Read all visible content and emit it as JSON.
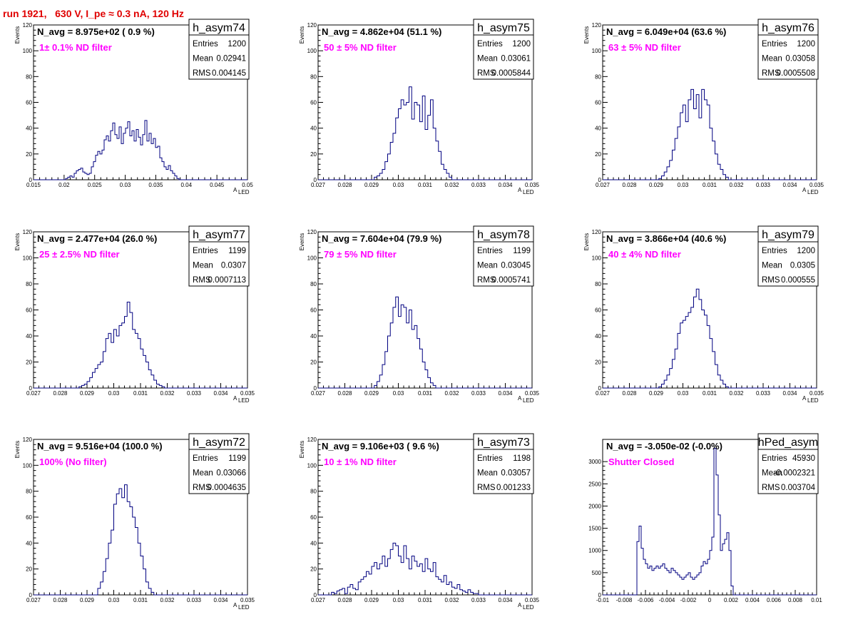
{
  "header": {
    "title": "run 1921,   630 V, I_pe ≈ 0.3 nA, 120 Hz"
  },
  "chart_data": [
    {
      "type": "bar",
      "name": "h_asym74",
      "navg": "N_avg = 8.975e+02 ( 0.9 %)",
      "filter": "1± 0.1% ND filter",
      "stats": {
        "entries": "1200",
        "mean": "0.02941",
        "rms": "0.004145"
      },
      "ylabel": "Events",
      "xlabel": "A",
      "xlabel_sub": "LED",
      "xlim": [
        0.015,
        0.05
      ],
      "ylim": [
        0,
        120
      ],
      "xticks": [
        "0.015",
        "0.02",
        "0.025",
        "0.03",
        "0.035",
        "0.04",
        "0.045",
        "0.05"
      ],
      "yticks": [
        "0",
        "20",
        "40",
        "60",
        "80",
        "100",
        "120"
      ],
      "bin_start": 0.015,
      "bin_width": 0.00035,
      "values": [
        0,
        0,
        0,
        0,
        0,
        0,
        0,
        0,
        0,
        0,
        0,
        0,
        0,
        0,
        0,
        1,
        2,
        3,
        2,
        5,
        7,
        8,
        9,
        6,
        5,
        4,
        5,
        10,
        14,
        19,
        22,
        20,
        23,
        31,
        34,
        30,
        38,
        44,
        35,
        32,
        41,
        28,
        36,
        40,
        45,
        34,
        38,
        30,
        39,
        33,
        27,
        35,
        46,
        30,
        36,
        28,
        32,
        25,
        26,
        17,
        14,
        10,
        8,
        11,
        7,
        5,
        3,
        1,
        0,
        0,
        0,
        0,
        0,
        0,
        0,
        0,
        0,
        0,
        0,
        0,
        0,
        0,
        0,
        0,
        0,
        0,
        0,
        0,
        0,
        0,
        0,
        0,
        0,
        0,
        0,
        0,
        0,
        0,
        0,
        0
      ]
    },
    {
      "type": "bar",
      "name": "h_asym75",
      "navg": "N_avg = 4.862e+04 (51.1 %)",
      "filter": "50 ± 5% ND filter",
      "stats": {
        "entries": "1200",
        "mean": "0.03061",
        "rms": "0.0005844"
      },
      "ylabel": "Events",
      "xlabel": "A",
      "xlabel_sub": "LED",
      "xlim": [
        0.027,
        0.035
      ],
      "ylim": [
        0,
        120
      ],
      "xticks": [
        "0.027",
        "0.028",
        "0.029",
        "0.03",
        "0.031",
        "0.032",
        "0.033",
        "0.034",
        "0.035"
      ],
      "yticks": [
        "0",
        "20",
        "40",
        "60",
        "80",
        "100",
        "120"
      ],
      "bin_start": 0.027,
      "bin_width": 0.0001,
      "values": [
        0,
        0,
        0,
        0,
        0,
        0,
        0,
        0,
        0,
        0,
        0,
        0,
        0,
        0,
        0,
        0,
        0,
        0,
        0,
        0,
        0,
        2,
        3,
        5,
        8,
        14,
        20,
        29,
        36,
        48,
        55,
        62,
        58,
        60,
        72,
        47,
        60,
        58,
        45,
        65,
        39,
        50,
        62,
        40,
        30,
        22,
        12,
        8,
        5,
        2,
        0,
        0,
        0,
        0,
        0,
        0,
        0,
        0,
        0,
        0,
        0,
        0,
        0,
        0,
        0,
        0,
        0,
        0,
        0,
        0,
        0,
        0,
        0,
        0,
        0,
        0,
        0,
        0,
        0,
        0
      ]
    },
    {
      "type": "bar",
      "name": "h_asym76",
      "navg": "N_avg = 6.049e+04 (63.6 %)",
      "filter": "63 ± 5% ND filter",
      "stats": {
        "entries": "1200",
        "mean": "0.03058",
        "rms": "0.0005508"
      },
      "ylabel": "Events",
      "xlabel": "A",
      "xlabel_sub": "LED",
      "xlim": [
        0.027,
        0.035
      ],
      "ylim": [
        0,
        120
      ],
      "xticks": [
        "0.027",
        "0.028",
        "0.029",
        "0.03",
        "0.031",
        "0.032",
        "0.033",
        "0.034",
        "0.035"
      ],
      "yticks": [
        "0",
        "20",
        "40",
        "60",
        "80",
        "100",
        "120"
      ],
      "bin_start": 0.027,
      "bin_width": 0.0001,
      "values": [
        0,
        0,
        0,
        0,
        0,
        0,
        0,
        0,
        0,
        0,
        0,
        0,
        0,
        0,
        0,
        0,
        0,
        0,
        0,
        0,
        0,
        1,
        3,
        6,
        10,
        15,
        23,
        32,
        41,
        52,
        58,
        45,
        62,
        70,
        55,
        66,
        48,
        70,
        62,
        58,
        40,
        30,
        20,
        12,
        8,
        4,
        2,
        0,
        0,
        0,
        0,
        0,
        0,
        0,
        0,
        0,
        0,
        0,
        0,
        0,
        0,
        0,
        0,
        0,
        0,
        0,
        0,
        0,
        0,
        0,
        0,
        0,
        0,
        0,
        0,
        0,
        0,
        0,
        0,
        0
      ]
    },
    {
      "type": "bar",
      "name": "h_asym77",
      "navg": "N_avg = 2.477e+04 (26.0 %)",
      "filter": "25 ± 2.5% ND filter",
      "stats": {
        "entries": "1199",
        "mean": "0.0307",
        "rms": "0.0007113"
      },
      "ylabel": "Events",
      "xlabel": "A",
      "xlabel_sub": "LED",
      "xlim": [
        0.027,
        0.035
      ],
      "ylim": [
        0,
        120
      ],
      "xticks": [
        "0.027",
        "0.028",
        "0.029",
        "0.03",
        "0.031",
        "0.032",
        "0.033",
        "0.034",
        "0.035"
      ],
      "yticks": [
        "0",
        "20",
        "40",
        "60",
        "80",
        "100",
        "120"
      ],
      "bin_start": 0.027,
      "bin_width": 0.0001,
      "values": [
        0,
        0,
        0,
        0,
        0,
        0,
        0,
        0,
        0,
        0,
        0,
        0,
        0,
        0,
        0,
        0,
        0,
        1,
        2,
        3,
        5,
        8,
        12,
        15,
        18,
        20,
        28,
        38,
        42,
        35,
        45,
        40,
        48,
        50,
        55,
        66,
        58,
        45,
        42,
        38,
        30,
        25,
        20,
        14,
        10,
        6,
        3,
        2,
        1,
        0,
        0,
        0,
        0,
        0,
        0,
        0,
        0,
        0,
        0,
        0,
        0,
        0,
        0,
        0,
        0,
        0,
        0,
        0,
        0,
        0,
        0,
        0,
        0,
        0,
        0,
        0,
        0,
        0,
        0,
        0
      ]
    },
    {
      "type": "bar",
      "name": "h_asym78",
      "navg": "N_avg = 7.604e+04 (79.9 %)",
      "filter": "79 ± 5% ND filter",
      "stats": {
        "entries": "1199",
        "mean": "0.03045",
        "rms": "0.0005741"
      },
      "ylabel": "Events",
      "xlabel": "A",
      "xlabel_sub": "LED",
      "xlim": [
        0.027,
        0.035
      ],
      "ylim": [
        0,
        120
      ],
      "xticks": [
        "0.027",
        "0.028",
        "0.029",
        "0.03",
        "0.031",
        "0.032",
        "0.033",
        "0.034",
        "0.035"
      ],
      "yticks": [
        "0",
        "20",
        "40",
        "60",
        "80",
        "100",
        "120"
      ],
      "bin_start": 0.027,
      "bin_width": 0.0001,
      "values": [
        0,
        0,
        0,
        0,
        0,
        0,
        0,
        0,
        0,
        0,
        0,
        0,
        0,
        0,
        0,
        0,
        0,
        0,
        0,
        0,
        0,
        2,
        5,
        10,
        18,
        28,
        40,
        50,
        62,
        70,
        55,
        64,
        62,
        50,
        60,
        45,
        48,
        38,
        30,
        20,
        14,
        8,
        4,
        2,
        0,
        0,
        0,
        0,
        0,
        0,
        0,
        0,
        0,
        0,
        0,
        0,
        0,
        0,
        0,
        0,
        0,
        0,
        0,
        0,
        0,
        0,
        0,
        0,
        0,
        0,
        0,
        0,
        0,
        0,
        0,
        0,
        0,
        0,
        0,
        0
      ]
    },
    {
      "type": "bar",
      "name": "h_asym79",
      "navg": "N_avg = 3.866e+04 (40.6 %)",
      "filter": "40 ± 4% ND filter",
      "stats": {
        "entries": "1200",
        "mean": "0.0305",
        "rms": "0.000555"
      },
      "ylabel": "Events",
      "xlabel": "A",
      "xlabel_sub": "LED",
      "xlim": [
        0.027,
        0.035
      ],
      "ylim": [
        0,
        120
      ],
      "xticks": [
        "0.027",
        "0.028",
        "0.029",
        "0.03",
        "0.031",
        "0.032",
        "0.033",
        "0.034",
        "0.035"
      ],
      "yticks": [
        "0",
        "20",
        "40",
        "60",
        "80",
        "100",
        "120"
      ],
      "bin_start": 0.027,
      "bin_width": 0.0001,
      "values": [
        0,
        0,
        0,
        0,
        0,
        0,
        0,
        0,
        0,
        0,
        0,
        0,
        0,
        0,
        0,
        0,
        0,
        0,
        0,
        0,
        0,
        1,
        3,
        6,
        10,
        15,
        22,
        30,
        42,
        50,
        52,
        55,
        58,
        62,
        70,
        76,
        68,
        60,
        56,
        48,
        38,
        28,
        18,
        10,
        6,
        3,
        1,
        0,
        0,
        0,
        0,
        0,
        0,
        0,
        0,
        0,
        0,
        0,
        0,
        0,
        0,
        0,
        0,
        0,
        0,
        0,
        0,
        0,
        0,
        0,
        0,
        0,
        0,
        0,
        0,
        0,
        0,
        0,
        0,
        0
      ]
    },
    {
      "type": "bar",
      "name": "h_asym72",
      "navg": "N_avg = 9.516e+04 (100.0 %)",
      "filter": "100% (No filter)",
      "stats": {
        "entries": "1199",
        "mean": "0.03066",
        "rms": "0.0004635"
      },
      "ylabel": "Events",
      "xlabel": "A",
      "xlabel_sub": "LED",
      "xlim": [
        0.027,
        0.035
      ],
      "ylim": [
        0,
        120
      ],
      "xticks": [
        "0.027",
        "0.028",
        "0.029",
        "0.03",
        "0.031",
        "0.032",
        "0.033",
        "0.034",
        "0.035"
      ],
      "yticks": [
        "0",
        "20",
        "40",
        "60",
        "80",
        "100",
        "120"
      ],
      "bin_start": 0.027,
      "bin_width": 0.0001,
      "values": [
        0,
        0,
        0,
        0,
        0,
        0,
        0,
        0,
        0,
        0,
        0,
        0,
        0,
        0,
        0,
        0,
        0,
        0,
        0,
        0,
        0,
        0,
        0,
        0,
        5,
        10,
        18,
        28,
        40,
        50,
        70,
        78,
        82,
        75,
        85,
        72,
        68,
        60,
        52,
        40,
        30,
        20,
        10,
        5,
        2,
        0,
        0,
        0,
        0,
        0,
        0,
        0,
        0,
        0,
        0,
        0,
        0,
        0,
        0,
        0,
        0,
        0,
        0,
        0,
        0,
        0,
        0,
        0,
        0,
        0,
        0,
        0,
        0,
        0,
        0,
        0,
        0,
        0,
        0,
        0
      ]
    },
    {
      "type": "bar",
      "name": "h_asym73",
      "navg": "N_avg = 9.106e+03 ( 9.6 %)",
      "filter": "10 ± 1% ND filter",
      "stats": {
        "entries": "1198",
        "mean": "0.03057",
        "rms": "0.001233"
      },
      "ylabel": "Events",
      "xlabel": "A",
      "xlabel_sub": "LED",
      "xlim": [
        0.027,
        0.035
      ],
      "ylim": [
        0,
        120
      ],
      "xticks": [
        "0.027",
        "0.028",
        "0.029",
        "0.03",
        "0.031",
        "0.032",
        "0.033",
        "0.034",
        "0.035"
      ],
      "yticks": [
        "0",
        "20",
        "40",
        "60",
        "80",
        "100",
        "120"
      ],
      "bin_start": 0.027,
      "bin_width": 0.0001,
      "values": [
        0,
        0,
        0,
        0,
        0,
        2,
        1,
        3,
        4,
        5,
        1,
        6,
        8,
        5,
        4,
        10,
        12,
        14,
        18,
        16,
        22,
        25,
        20,
        24,
        30,
        22,
        28,
        35,
        40,
        38,
        30,
        25,
        38,
        28,
        20,
        30,
        26,
        22,
        24,
        18,
        28,
        20,
        18,
        25,
        14,
        12,
        10,
        15,
        8,
        10,
        6,
        5,
        8,
        4,
        3,
        2,
        4,
        2,
        1,
        1,
        0,
        0,
        0,
        0,
        0,
        0,
        0,
        0,
        0,
        0,
        0,
        0,
        0,
        0,
        0,
        0,
        0,
        0,
        0,
        0
      ]
    },
    {
      "type": "bar",
      "name": "hPed_asym",
      "navg": "N_avg = -3.050e-02 (-0.0%)",
      "filter": "Shutter Closed",
      "stats": {
        "entries": "45930",
        "mean": "-0.0002321",
        "rms": "0.003704"
      },
      "ylabel": "",
      "xlabel": "",
      "xlabel_sub": "",
      "xlim": [
        -0.01,
        0.01
      ],
      "ylim": [
        0,
        3500
      ],
      "xticks": [
        "-0.01",
        "-0.008",
        "-0.006",
        "-0.004",
        "-0.002",
        "0",
        "0.002",
        "0.004",
        "0.006",
        "0.008",
        "0.01"
      ],
      "yticks": [
        "0",
        "500",
        "1000",
        "1500",
        "2000",
        "2500",
        "3000"
      ],
      "bin_start": -0.01,
      "bin_width": 0.0002,
      "values": [
        0,
        0,
        0,
        0,
        0,
        0,
        0,
        0,
        0,
        0,
        0,
        0,
        0,
        0,
        0,
        0,
        1200,
        1550,
        1050,
        800,
        700,
        600,
        650,
        550,
        600,
        650,
        600,
        650,
        700,
        600,
        550,
        500,
        600,
        550,
        500,
        450,
        400,
        350,
        400,
        450,
        500,
        400,
        350,
        400,
        450,
        500,
        650,
        750,
        700,
        800,
        1000,
        1300,
        3300,
        2700,
        1800,
        1000,
        1150,
        1250,
        1400,
        1000,
        200,
        0,
        0,
        0,
        0,
        0,
        0,
        0,
        0,
        0,
        0,
        0,
        0,
        0,
        0,
        0,
        0,
        0,
        0,
        0,
        0,
        0,
        0,
        0,
        0,
        0,
        0,
        0,
        0,
        0,
        0,
        0,
        0,
        0,
        0,
        0,
        0,
        0,
        0,
        0
      ]
    }
  ]
}
